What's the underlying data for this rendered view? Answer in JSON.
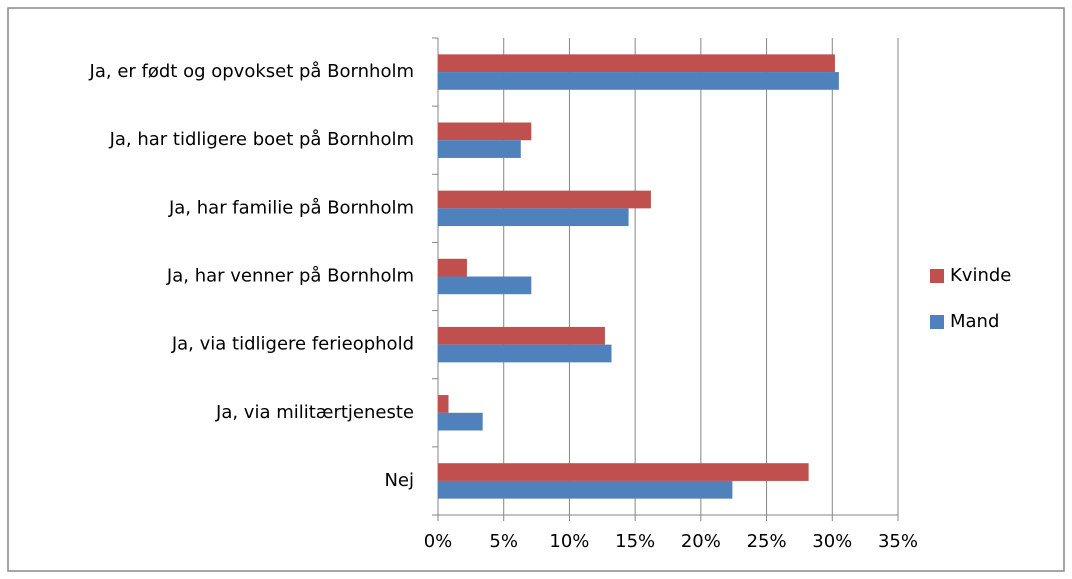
{
  "chart_data": {
    "type": "hbar",
    "categories": [
      "Ja, er født og opvokset på Bornholm",
      "Ja, har tidligere boet på Bornholm",
      "Ja, har familie på Bornholm",
      "Ja, har venner på Bornholm",
      "Ja, via tidligere ferieophold",
      "Ja, via militærtjeneste",
      "Nej"
    ],
    "series": [
      {
        "name": "Kvinde",
        "color": "#c0504d",
        "values": [
          30.2,
          7.1,
          16.2,
          2.2,
          12.7,
          0.8,
          28.2
        ]
      },
      {
        "name": "Mand",
        "color": "#4f81bd",
        "values": [
          30.5,
          6.3,
          14.5,
          7.1,
          13.2,
          3.4,
          22.4
        ]
      }
    ],
    "xlim": [
      0,
      35
    ],
    "xticks": [
      {
        "value": 0,
        "label": "0%"
      },
      {
        "value": 5,
        "label": "5%"
      },
      {
        "value": 10,
        "label": "10%"
      },
      {
        "value": 15,
        "label": "15%"
      },
      {
        "value": 20,
        "label": "20%"
      },
      {
        "value": 25,
        "label": "25%"
      },
      {
        "value": 30,
        "label": "30%"
      },
      {
        "value": 35,
        "label": "35%"
      }
    ],
    "grid": true,
    "legend": "right"
  }
}
